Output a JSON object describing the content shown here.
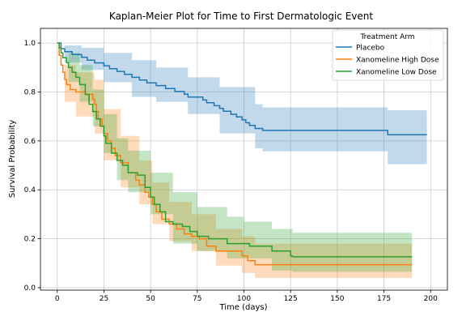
{
  "chart_data": {
    "type": "line",
    "title": "Kaplan-Meier Plot for Time to First Dermatologic Event",
    "xlabel": "Time (days)",
    "ylabel": "Survival Probability",
    "xlim": [
      -9,
      209
    ],
    "ylim": [
      -0.01,
      1.06
    ],
    "xticks": [
      0,
      25,
      50,
      75,
      100,
      125,
      150,
      175,
      200
    ],
    "yticks": [
      0.0,
      0.2,
      0.4,
      0.6,
      0.8,
      1.0
    ],
    "grid": true,
    "legend": {
      "title": "Treatment Arm",
      "placement": "top-right"
    },
    "series": [
      {
        "name": "Placebo",
        "color": "#1f77b4",
        "points": [
          [
            0,
            1.0
          ],
          [
            2,
            0.977
          ],
          [
            4,
            0.965
          ],
          [
            8,
            0.953
          ],
          [
            13,
            0.942
          ],
          [
            16,
            0.93
          ],
          [
            20,
            0.919
          ],
          [
            25,
            0.907
          ],
          [
            28,
            0.895
          ],
          [
            32,
            0.884
          ],
          [
            36,
            0.872
          ],
          [
            40,
            0.86
          ],
          [
            44,
            0.849
          ],
          [
            48,
            0.837
          ],
          [
            53,
            0.826
          ],
          [
            58,
            0.814
          ],
          [
            63,
            0.802
          ],
          [
            68,
            0.791
          ],
          [
            70,
            0.779
          ],
          [
            78,
            0.767
          ],
          [
            80,
            0.756
          ],
          [
            84,
            0.744
          ],
          [
            87,
            0.733
          ],
          [
            89,
            0.721
          ],
          [
            93,
            0.709
          ],
          [
            96,
            0.698
          ],
          [
            99,
            0.686
          ],
          [
            101,
            0.674
          ],
          [
            103,
            0.663
          ],
          [
            106,
            0.651
          ],
          [
            110,
            0.643
          ],
          [
            175,
            0.643
          ],
          [
            177,
            0.625
          ],
          [
            198,
            0.625
          ]
        ],
        "ci_lower": [
          [
            0,
            1.0
          ],
          [
            4,
            0.92
          ],
          [
            13,
            0.89
          ],
          [
            25,
            0.84
          ],
          [
            40,
            0.78
          ],
          [
            53,
            0.76
          ],
          [
            70,
            0.71
          ],
          [
            87,
            0.63
          ],
          [
            106,
            0.57
          ],
          [
            110,
            0.557
          ],
          [
            175,
            0.557
          ],
          [
            177,
            0.505
          ],
          [
            198,
            0.505
          ]
        ],
        "ci_upper": [
          [
            0,
            1.0
          ],
          [
            4,
            0.99
          ],
          [
            13,
            0.98
          ],
          [
            25,
            0.96
          ],
          [
            40,
            0.93
          ],
          [
            53,
            0.9
          ],
          [
            70,
            0.86
          ],
          [
            87,
            0.82
          ],
          [
            106,
            0.75
          ],
          [
            110,
            0.737
          ],
          [
            175,
            0.737
          ],
          [
            177,
            0.725
          ],
          [
            198,
            0.725
          ]
        ]
      },
      {
        "name": "Xanomeline High Dose",
        "color": "#ff7f0e",
        "points": [
          [
            0,
            1.0
          ],
          [
            1,
            0.95
          ],
          [
            2,
            0.91
          ],
          [
            3,
            0.88
          ],
          [
            4,
            0.85
          ],
          [
            5,
            0.83
          ],
          [
            7,
            0.81
          ],
          [
            10,
            0.8
          ],
          [
            15,
            0.79
          ],
          [
            19,
            0.77
          ],
          [
            20,
            0.75
          ],
          [
            21,
            0.72
          ],
          [
            22,
            0.69
          ],
          [
            24,
            0.66
          ],
          [
            25,
            0.63
          ],
          [
            27,
            0.6
          ],
          [
            29,
            0.57
          ],
          [
            31,
            0.54
          ],
          [
            34,
            0.51
          ],
          [
            38,
            0.47
          ],
          [
            42,
            0.44
          ],
          [
            44,
            0.42
          ],
          [
            47,
            0.39
          ],
          [
            49,
            0.37
          ],
          [
            51,
            0.34
          ],
          [
            53,
            0.31
          ],
          [
            56,
            0.28
          ],
          [
            60,
            0.26
          ],
          [
            64,
            0.24
          ],
          [
            68,
            0.22
          ],
          [
            72,
            0.21
          ],
          [
            76,
            0.2
          ],
          [
            80,
            0.17
          ],
          [
            85,
            0.15
          ],
          [
            98,
            0.15
          ],
          [
            99,
            0.13
          ],
          [
            102,
            0.11
          ],
          [
            106,
            0.094
          ],
          [
            190,
            0.094
          ]
        ],
        "ci_lower": [
          [
            0,
            1.0
          ],
          [
            4,
            0.76
          ],
          [
            10,
            0.7
          ],
          [
            20,
            0.63
          ],
          [
            25,
            0.52
          ],
          [
            34,
            0.41
          ],
          [
            44,
            0.34
          ],
          [
            51,
            0.26
          ],
          [
            60,
            0.19
          ],
          [
            72,
            0.15
          ],
          [
            85,
            0.09
          ],
          [
            99,
            0.06
          ],
          [
            106,
            0.04
          ],
          [
            190,
            0.04
          ]
        ],
        "ci_upper": [
          [
            0,
            1.0
          ],
          [
            4,
            0.91
          ],
          [
            10,
            0.88
          ],
          [
            20,
            0.85
          ],
          [
            25,
            0.73
          ],
          [
            34,
            0.62
          ],
          [
            44,
            0.52
          ],
          [
            51,
            0.43
          ],
          [
            60,
            0.35
          ],
          [
            72,
            0.3
          ],
          [
            85,
            0.24
          ],
          [
            99,
            0.21
          ],
          [
            106,
            0.18
          ],
          [
            190,
            0.18
          ]
        ]
      },
      {
        "name": "Xanomeline Low Dose",
        "color": "#2ca02c",
        "points": [
          [
            0,
            1.0
          ],
          [
            1,
            0.98
          ],
          [
            2,
            0.96
          ],
          [
            3,
            0.94
          ],
          [
            5,
            0.92
          ],
          [
            6,
            0.9
          ],
          [
            8,
            0.88
          ],
          [
            10,
            0.86
          ],
          [
            12,
            0.83
          ],
          [
            15,
            0.79
          ],
          [
            17,
            0.75
          ],
          [
            19,
            0.72
          ],
          [
            21,
            0.69
          ],
          [
            23,
            0.66
          ],
          [
            25,
            0.62
          ],
          [
            26,
            0.59
          ],
          [
            29,
            0.55
          ],
          [
            32,
            0.52
          ],
          [
            35,
            0.5
          ],
          [
            38,
            0.47
          ],
          [
            43,
            0.46
          ],
          [
            47,
            0.41
          ],
          [
            50,
            0.37
          ],
          [
            52,
            0.34
          ],
          [
            55,
            0.31
          ],
          [
            58,
            0.27
          ],
          [
            62,
            0.26
          ],
          [
            67,
            0.25
          ],
          [
            71,
            0.23
          ],
          [
            75,
            0.21
          ],
          [
            81,
            0.2
          ],
          [
            91,
            0.18
          ],
          [
            100,
            0.18
          ],
          [
            103,
            0.17
          ],
          [
            110,
            0.17
          ],
          [
            115,
            0.15
          ],
          [
            125,
            0.13
          ],
          [
            126,
            0.126
          ],
          [
            190,
            0.126
          ]
        ],
        "ci_lower": [
          [
            0,
            1.0
          ],
          [
            6,
            0.84
          ],
          [
            12,
            0.76
          ],
          [
            19,
            0.66
          ],
          [
            25,
            0.55
          ],
          [
            32,
            0.44
          ],
          [
            38,
            0.39
          ],
          [
            50,
            0.3
          ],
          [
            62,
            0.18
          ],
          [
            75,
            0.15
          ],
          [
            91,
            0.12
          ],
          [
            115,
            0.07
          ],
          [
            126,
            0.065
          ],
          [
            190,
            0.065
          ]
        ],
        "ci_upper": [
          [
            0,
            1.0
          ],
          [
            6,
            0.96
          ],
          [
            12,
            0.91
          ],
          [
            19,
            0.81
          ],
          [
            25,
            0.71
          ],
          [
            32,
            0.61
          ],
          [
            38,
            0.56
          ],
          [
            50,
            0.47
          ],
          [
            62,
            0.39
          ],
          [
            75,
            0.33
          ],
          [
            91,
            0.29
          ],
          [
            100,
            0.27
          ],
          [
            115,
            0.24
          ],
          [
            126,
            0.225
          ],
          [
            190,
            0.225
          ]
        ]
      }
    ]
  }
}
